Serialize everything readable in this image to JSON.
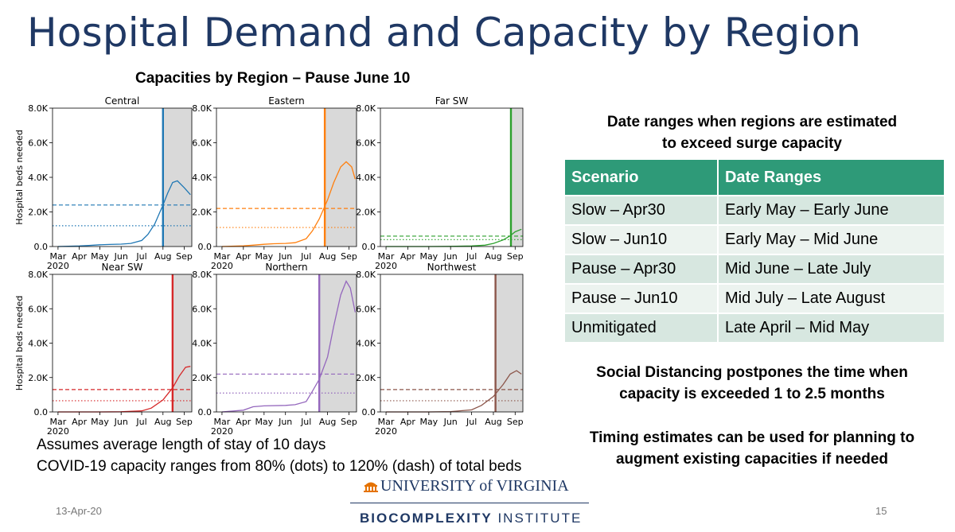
{
  "slide": {
    "title": "Hospital Demand and Capacity by Region",
    "figure_title": "Capacities by Region – Pause June 10",
    "notes": [
      "Assumes average length of stay of 10 days",
      "COVID-19 capacity ranges from 80% (dots) to 120% (dash) of total beds"
    ],
    "right_heading_1": "Date ranges when regions are estimated",
    "right_heading_2": "to exceed surge capacity",
    "table": {
      "headers": [
        "Scenario",
        "Date Ranges"
      ],
      "rows": [
        [
          "Slow – Apr30",
          "Early May – Early June"
        ],
        [
          "Slow – Jun10",
          "Early May – Mid June"
        ],
        [
          "Pause – Apr30",
          "Mid June – Late July"
        ],
        [
          "Pause – Jun10",
          "Mid July – Late August"
        ],
        [
          "Unmitigated",
          "Late April – Mid May"
        ]
      ]
    },
    "statement_1_line1": "Social Distancing postpones the time when",
    "statement_1_line2": "capacity is exceeded 1 to 2.5 months",
    "statement_2_line1": "Timing estimates can be used for planning to",
    "statement_2_line2": "augment existing capacities if needed",
    "footer_date": "13-Apr-20",
    "footer_page": "15",
    "university": "UNIVERSITY of VIRGINIA",
    "institute_bold": "BIOCOMPLEXITY",
    "institute_rest": " INSTITUTE",
    "accent_color": "#2e9a78",
    "title_color": "#1f3864"
  },
  "chart_data": [
    {
      "type": "line",
      "title": "Central",
      "color": "#1f77b4",
      "ylabel": "Hospital beds needed",
      "ylim": [
        0,
        8000
      ],
      "x_ticks": [
        "Mar\n2020",
        "Apr",
        "May",
        "Jun",
        "Jul",
        "Aug",
        "Sep"
      ],
      "y_ticks": [
        "0.0",
        "2.0K",
        "4.0K",
        "6.0K",
        "8.0K"
      ],
      "x": [
        "2020-03-01",
        "2020-04-01",
        "2020-04-15",
        "2020-05-01",
        "2020-05-15",
        "2020-06-01",
        "2020-06-15",
        "2020-07-01",
        "2020-07-10",
        "2020-07-20",
        "2020-08-01",
        "2020-08-08",
        "2020-08-15",
        "2020-08-22",
        "2020-09-01",
        "2020-09-10"
      ],
      "y": [
        0,
        30,
        60,
        100,
        120,
        140,
        180,
        350,
        700,
        1300,
        2400,
        3100,
        3700,
        3800,
        3400,
        3000
      ],
      "capacity_120": 2400,
      "capacity_80": 1200,
      "exceed_date": "2020-08-01",
      "pause_end": "2020-09-10"
    },
    {
      "type": "line",
      "title": "Eastern",
      "color": "#ff7f0e",
      "ylim": [
        0,
        8000
      ],
      "x_ticks": [
        "Mar\n2020",
        "Apr",
        "May",
        "Jun",
        "Jul",
        "Aug",
        "Sep"
      ],
      "y_ticks": [
        "0.0",
        "2.0K",
        "4.0K",
        "6.0K",
        "8.0K"
      ],
      "x": [
        "2020-03-01",
        "2020-04-01",
        "2020-04-15",
        "2020-05-01",
        "2020-05-15",
        "2020-06-01",
        "2020-06-15",
        "2020-07-01",
        "2020-07-10",
        "2020-07-20",
        "2020-08-01",
        "2020-08-10",
        "2020-08-20",
        "2020-08-28",
        "2020-09-05",
        "2020-09-10"
      ],
      "y": [
        0,
        40,
        80,
        130,
        160,
        180,
        220,
        450,
        900,
        1600,
        2700,
        3700,
        4600,
        4900,
        4600,
        3900
      ],
      "capacity_120": 2200,
      "capacity_80": 1100,
      "exceed_date": "2020-07-28",
      "pause_end": "2020-09-10"
    },
    {
      "type": "line",
      "title": "Far SW",
      "color": "#2ca02c",
      "ylim": [
        0,
        8000
      ],
      "x_ticks": [
        "Mar\n2020",
        "Apr",
        "May",
        "Jun",
        "Jul",
        "Aug",
        "Sep"
      ],
      "y_ticks": [
        "0.0",
        "2.0K",
        "4.0K",
        "6.0K",
        "8.0K"
      ],
      "x": [
        "2020-03-01",
        "2020-05-01",
        "2020-06-01",
        "2020-07-01",
        "2020-07-20",
        "2020-08-01",
        "2020-08-15",
        "2020-08-25",
        "2020-09-01",
        "2020-09-10"
      ],
      "y": [
        0,
        0,
        10,
        30,
        80,
        180,
        380,
        620,
        850,
        1000
      ],
      "capacity_120": 600,
      "capacity_80": 400,
      "exceed_date": "2020-08-26",
      "pause_end": "2020-09-10"
    },
    {
      "type": "line",
      "title": "Near SW",
      "color": "#d62728",
      "ylabel": "Hospital beds needed",
      "ylim": [
        0,
        8000
      ],
      "x_ticks": [
        "Mar\n2020",
        "Apr",
        "May",
        "Jun",
        "Jul",
        "Aug",
        "Sep"
      ],
      "y_ticks": [
        "0.0",
        "2.0K",
        "4.0K",
        "6.0K",
        "8.0K"
      ],
      "x": [
        "2020-03-01",
        "2020-05-01",
        "2020-06-01",
        "2020-07-01",
        "2020-07-15",
        "2020-08-01",
        "2020-08-15",
        "2020-08-25",
        "2020-09-03",
        "2020-09-10"
      ],
      "y": [
        0,
        0,
        10,
        60,
        220,
        700,
        1400,
        2100,
        2600,
        2650
      ],
      "capacity_120": 1300,
      "capacity_80": 650,
      "exceed_date": "2020-08-15",
      "pause_end": "2020-09-10"
    },
    {
      "type": "line",
      "title": "Northern",
      "color": "#9467bd",
      "ylim": [
        0,
        8000
      ],
      "x_ticks": [
        "Mar\n2020",
        "Apr",
        "May",
        "Jun",
        "Jul",
        "Aug",
        "Sep"
      ],
      "y_ticks": [
        "0.0",
        "2.0K",
        "4.0K",
        "6.0K",
        "8.0K"
      ],
      "x": [
        "2020-03-01",
        "2020-04-01",
        "2020-04-15",
        "2020-05-01",
        "2020-06-01",
        "2020-06-15",
        "2020-07-01",
        "2020-07-10",
        "2020-07-20",
        "2020-08-01",
        "2020-08-10",
        "2020-08-20",
        "2020-08-28",
        "2020-09-03",
        "2020-09-10"
      ],
      "y": [
        0,
        100,
        300,
        350,
        380,
        420,
        600,
        1200,
        1900,
        3200,
        5000,
        6800,
        7600,
        7200,
        5800
      ],
      "capacity_120": 2200,
      "capacity_80": 1100,
      "exceed_date": "2020-07-20",
      "pause_end": "2020-09-10"
    },
    {
      "type": "line",
      "title": "Northwest",
      "color": "#8c564b",
      "ylim": [
        0,
        8000
      ],
      "x_ticks": [
        "Mar\n2020",
        "Apr",
        "May",
        "Jun",
        "Jul",
        "Aug",
        "Sep"
      ],
      "y_ticks": [
        "0.0",
        "2.0K",
        "4.0K",
        "6.0K",
        "8.0K"
      ],
      "x": [
        "2020-03-01",
        "2020-05-01",
        "2020-06-01",
        "2020-07-01",
        "2020-07-15",
        "2020-08-01",
        "2020-08-15",
        "2020-08-25",
        "2020-09-03",
        "2020-09-10"
      ],
      "y": [
        0,
        0,
        20,
        120,
        380,
        900,
        1600,
        2200,
        2400,
        2200
      ],
      "capacity_120": 1300,
      "capacity_80": 650,
      "exceed_date": "2020-08-04",
      "pause_end": "2020-09-10"
    }
  ]
}
